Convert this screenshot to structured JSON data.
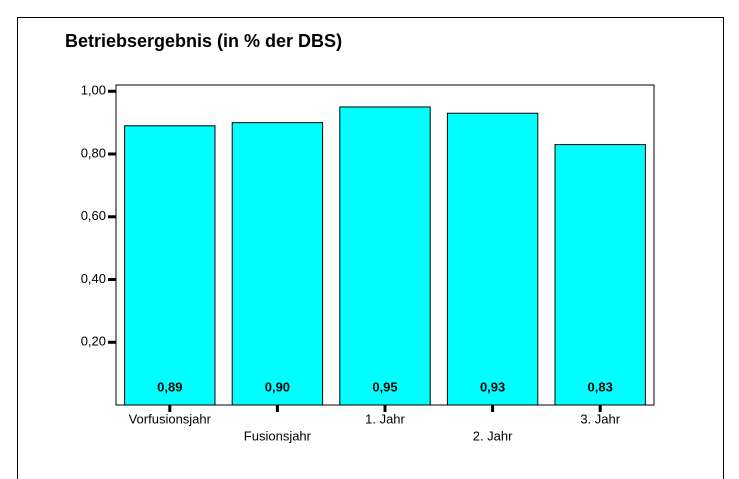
{
  "chart_data": {
    "type": "bar",
    "title": "Betriebsergebnis (in % der DBS)",
    "categories": [
      "Vorfusionsjahr",
      "Fusionsjahr",
      "1. Jahr",
      "2. Jahr",
      "3. Jahr"
    ],
    "values": [
      0.89,
      0.9,
      0.95,
      0.93,
      0.83
    ],
    "value_labels": [
      "0,89",
      "0,90",
      "0,95",
      "0,93",
      "0,83"
    ],
    "color": "#00ffff",
    "ylim": [
      0,
      1.02
    ],
    "yticks": [
      {
        "value": 0.2,
        "label": "0,20"
      },
      {
        "value": 0.4,
        "label": "0,40"
      },
      {
        "value": 0.6,
        "label": "0,60"
      },
      {
        "value": 0.8,
        "label": "0,80"
      },
      {
        "value": 1.0,
        "label": "1,00"
      }
    ],
    "grid": false
  }
}
